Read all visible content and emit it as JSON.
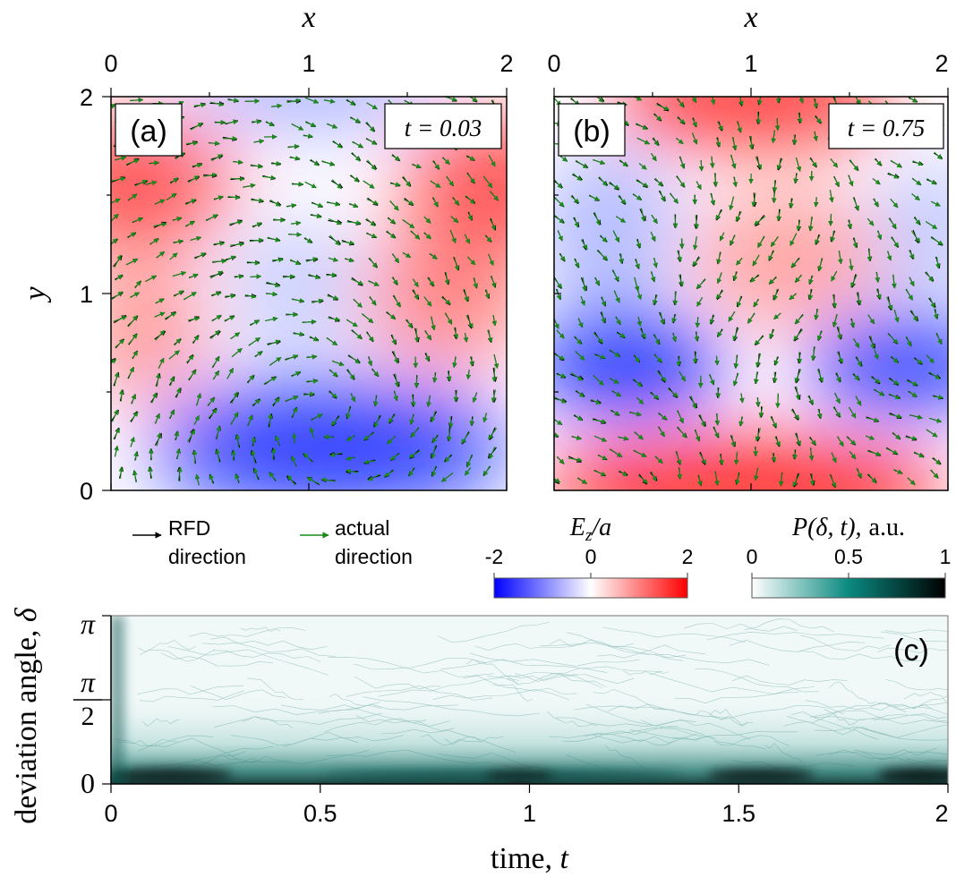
{
  "panels": [
    {
      "label": "(a)",
      "time_label": "t = 0.03",
      "xlabel": "x",
      "ylabel": "y",
      "xticks": [
        "0",
        "1",
        "2"
      ],
      "yticks": [
        "0",
        "1",
        "2"
      ],
      "xlim": [
        0,
        2
      ],
      "ylim": [
        0,
        2
      ]
    },
    {
      "label": "(b)",
      "time_label": "t = 0.75",
      "xlabel": "x",
      "xticks": [
        "0",
        "1",
        "2"
      ],
      "xlim": [
        0,
        2
      ],
      "ylim": [
        0,
        2
      ]
    }
  ],
  "legend": {
    "rfd": [
      "RFD",
      "direction"
    ],
    "actual": [
      "actual",
      "direction"
    ],
    "rfd_color": "#000000",
    "actual_color": "#1a8a1a"
  },
  "colorbars": {
    "field": {
      "label_main": "E",
      "label_sub": "z",
      "label_rest": "/a",
      "ticks": [
        "-2",
        "0",
        "2"
      ],
      "range": [
        -2,
        2
      ],
      "colors": [
        "#0000ff",
        "#ffffff",
        "#ff0000"
      ]
    },
    "density": {
      "label": "P(δ, t),",
      "label_unit": "a.u.",
      "ticks": [
        "0",
        "0.5",
        "1"
      ],
      "range": [
        0,
        1
      ],
      "colors": [
        "#ffffff",
        "#0a8a80",
        "#000000"
      ]
    }
  },
  "chart_data": [
    {
      "type": "heatmap",
      "panel": "(a)",
      "title": "t = 0.03",
      "xlabel": "x",
      "ylabel": "y",
      "xlim": [
        0,
        2
      ],
      "ylim": [
        0,
        2
      ],
      "value_range": [
        -2,
        2
      ],
      "field_regions": [
        {
          "x": 0.2,
          "y": 1.6,
          "value": 1.5
        },
        {
          "x": 1.9,
          "y": 1.6,
          "value": 1.5
        },
        {
          "x": 1.0,
          "y": 2.0,
          "value": -1.0
        },
        {
          "x": 0.9,
          "y": 1.05,
          "value": -0.6
        },
        {
          "x": 1.6,
          "y": 1.0,
          "value": 1.0
        },
        {
          "x": 0.1,
          "y": 0.9,
          "value": 1.0
        },
        {
          "x": 1.1,
          "y": 0.25,
          "value": -2.0
        }
      ]
    },
    {
      "type": "heatmap",
      "panel": "(b)",
      "title": "t = 0.75",
      "xlabel": "x",
      "xlim": [
        0,
        2
      ],
      "ylim": [
        0,
        2
      ],
      "value_range": [
        -2,
        2
      ],
      "field_regions": [
        {
          "x": 1.0,
          "y": 2.0,
          "value": 1.8
        },
        {
          "x": 1.2,
          "y": 1.4,
          "value": 0.8
        },
        {
          "x": 0.2,
          "y": 1.3,
          "value": -0.8
        },
        {
          "x": 1.9,
          "y": 1.3,
          "value": -0.5
        },
        {
          "x": 0.3,
          "y": 0.75,
          "value": -2.0
        },
        {
          "x": 1.8,
          "y": 0.75,
          "value": -1.8
        },
        {
          "x": 1.0,
          "y": 0.1,
          "value": 2.0
        }
      ]
    },
    {
      "type": "heatmap",
      "panel": "(c)",
      "xlabel": "time, t",
      "ylabel": "deviation angle, δ",
      "xlim": [
        0,
        2
      ],
      "ylim": [
        0,
        3.1416
      ],
      "xticks": [
        "0",
        "0.5",
        "1",
        "1.5",
        "2"
      ],
      "yticks": [
        "0",
        "π/2",
        "π"
      ],
      "value_range": [
        0,
        1
      ],
      "band_peak_delta": 0.12,
      "density_peaks": [
        {
          "t": 0.1,
          "delta": 0.12,
          "value": 0.9
        },
        {
          "t": 0.95,
          "delta": 0.12,
          "value": 1.0
        },
        {
          "t": 1.55,
          "delta": 0.12,
          "value": 0.95
        },
        {
          "t": 1.95,
          "delta": 0.1,
          "value": 1.0
        }
      ]
    }
  ],
  "panel_c": {
    "label": "(c)",
    "xlabel_main": "time, ",
    "xlabel_var": "t",
    "ylabel_main": "deviation angle, ",
    "ylabel_var": "δ",
    "xticks": [
      "0",
      "0.5",
      "1",
      "1.5",
      "2"
    ],
    "ytick_zero": "0",
    "ytick_half_num": "π",
    "ytick_half_den": "2",
    "ytick_pi": "π"
  }
}
